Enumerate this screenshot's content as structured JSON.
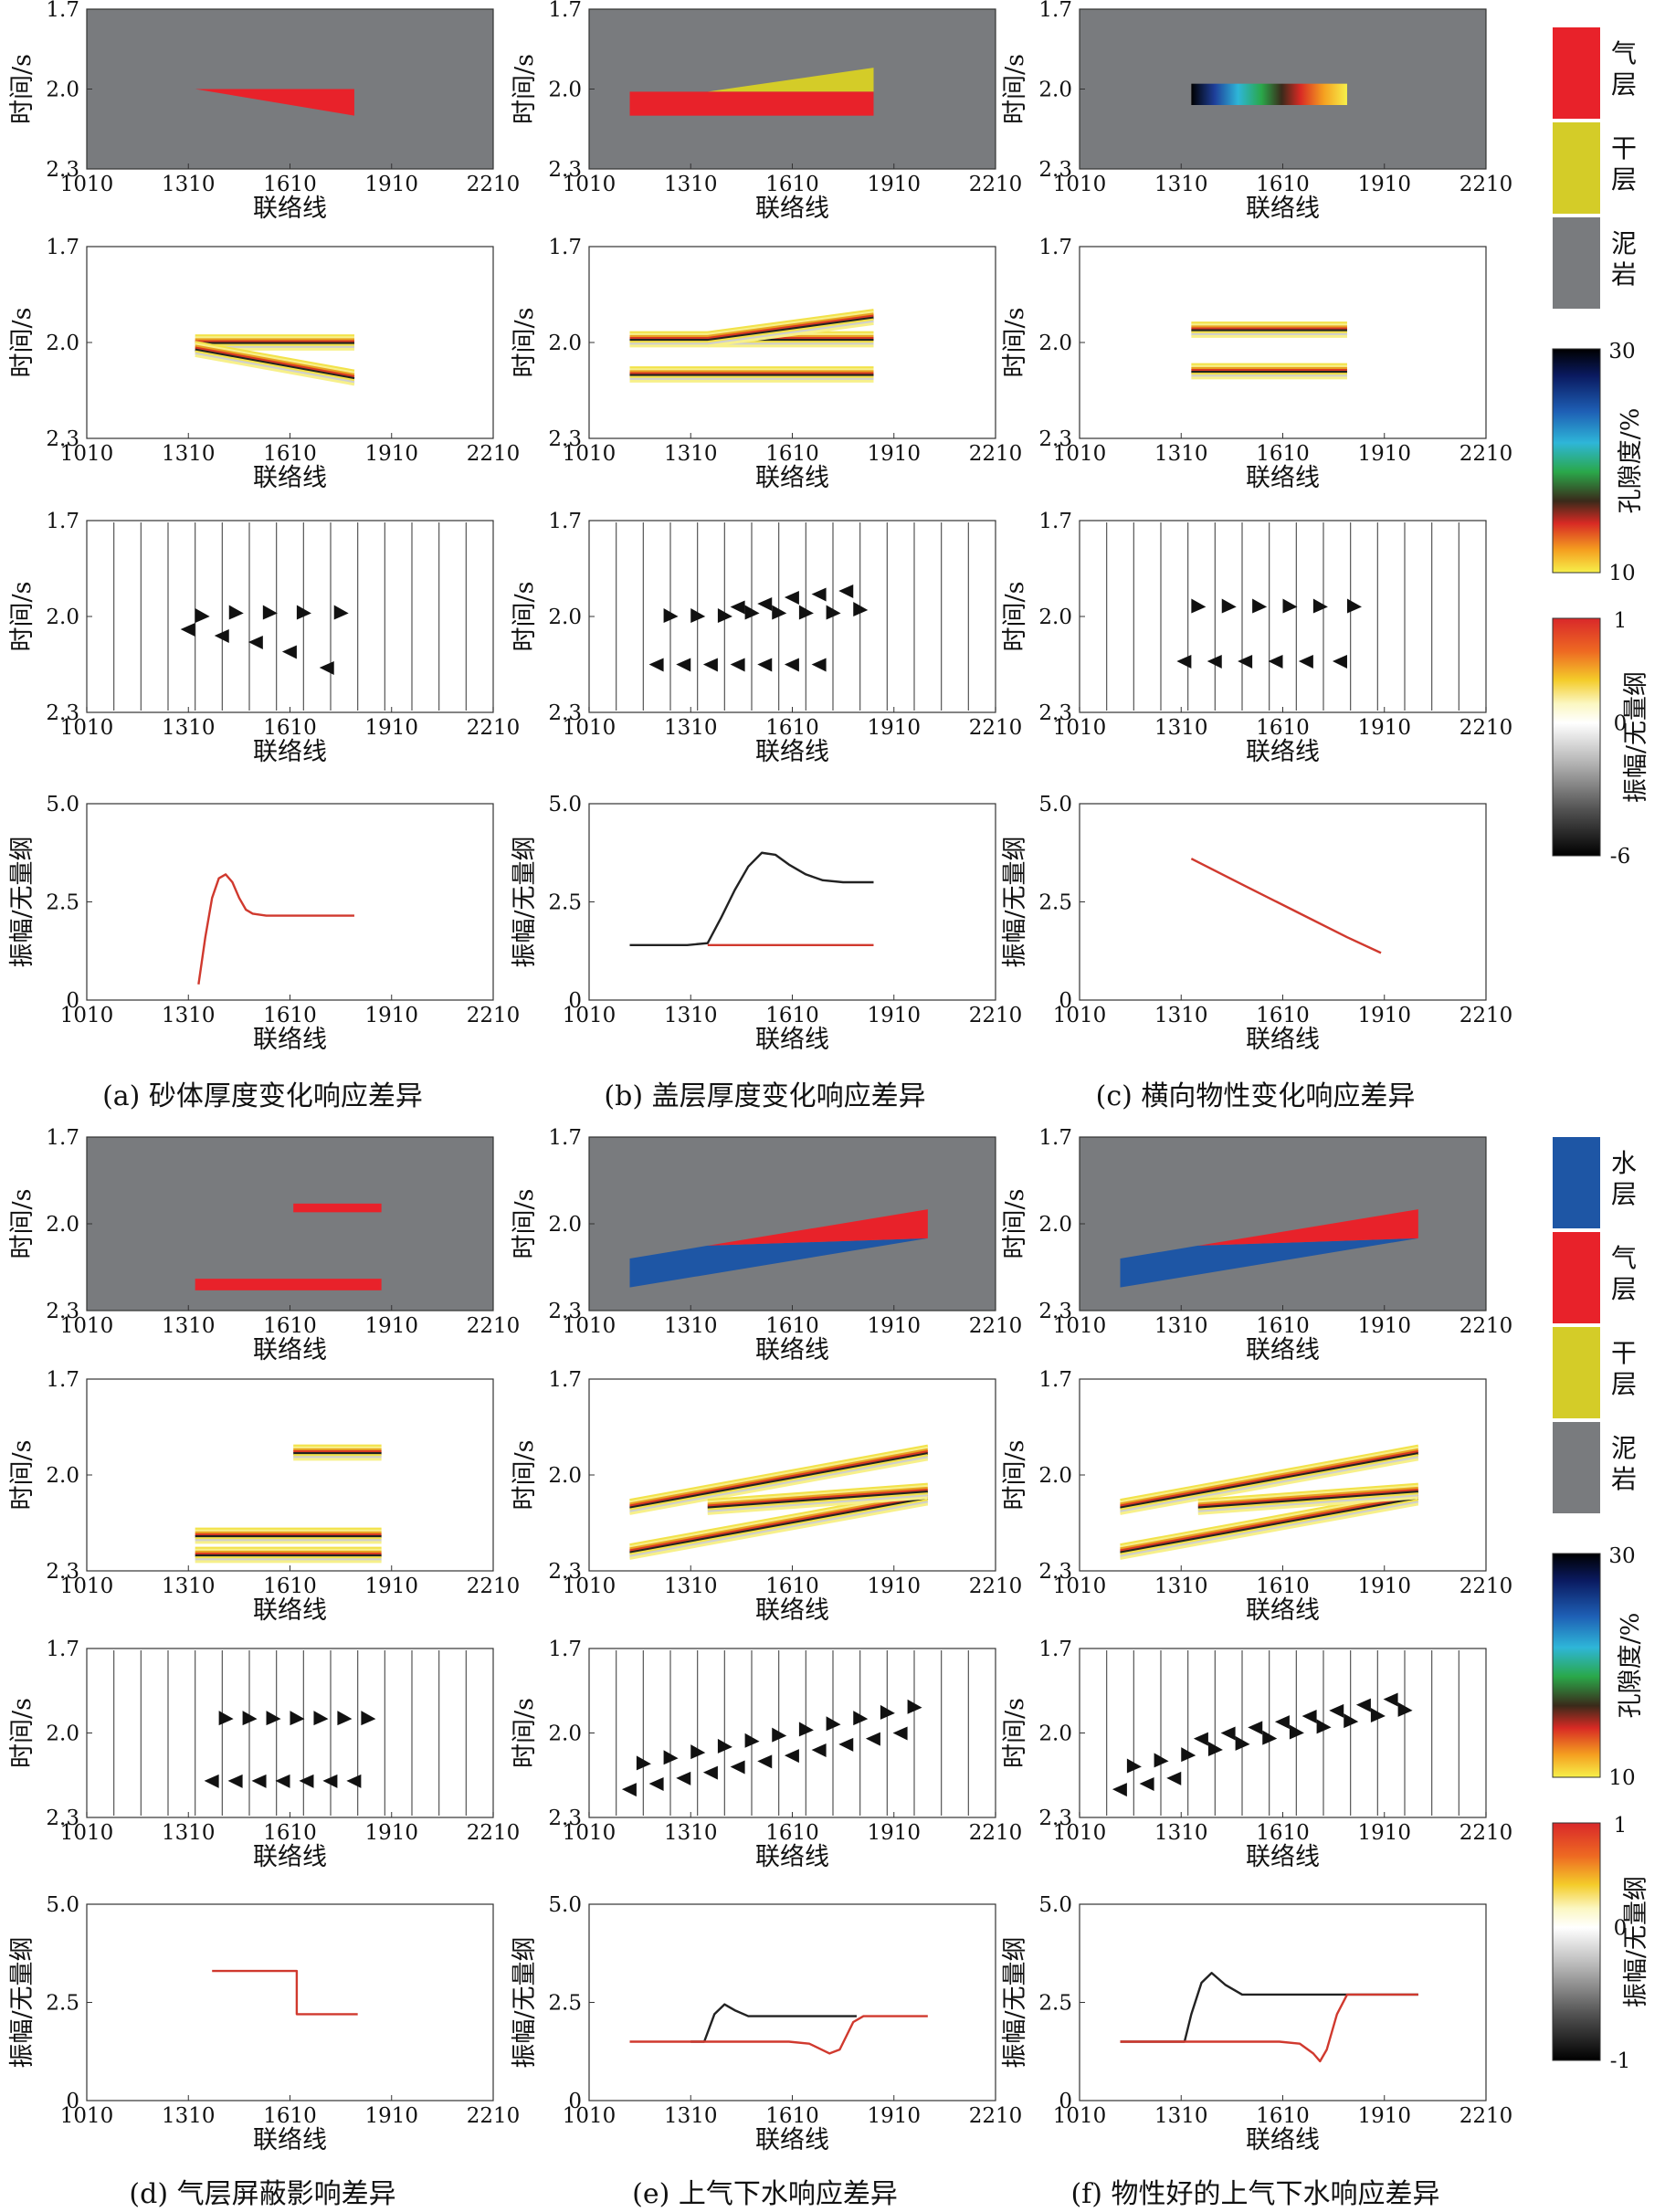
{
  "colors": {
    "gas": "#e8222a",
    "dry": "#d4cc28",
    "mud": "#797b7e",
    "water": "#1e56a5",
    "curve_red": "#d0392e",
    "curve_black": "#222222"
  },
  "legend_top": {
    "lithology": [
      {
        "label": "气\n层",
        "color": "#e8222a"
      },
      {
        "label": "干\n层",
        "color": "#d4cc28"
      },
      {
        "label": "泥\n岩",
        "color": "#797b7e"
      }
    ],
    "porosity": {
      "label": "孔隙度/%",
      "max": "30",
      "min": "10"
    },
    "amplitude": {
      "label": "振幅/无量纲",
      "max": "1",
      "mid": "0",
      "min": "-6"
    }
  },
  "legend_bottom": {
    "lithology": [
      {
        "label": "水\n层",
        "color": "#1e56a5"
      },
      {
        "label": "气\n层",
        "color": "#e8222a"
      },
      {
        "label": "干\n层",
        "color": "#d4cc28"
      },
      {
        "label": "泥\n岩",
        "color": "#797b7e"
      }
    ],
    "porosity": {
      "label": "孔隙度/%",
      "max": "30",
      "min": "10"
    },
    "amplitude": {
      "label": "振幅/无量纲",
      "max": "1",
      "mid": "0",
      "min": "-1"
    }
  },
  "chart_data": [
    {
      "panel": "a",
      "caption": "(a) 砂体厚度变化响应差异",
      "xlabel": "联络线",
      "ylabel_time": "时间/s",
      "ylabel_amp": "振幅/无量纲",
      "xticks": [
        "1010",
        "1310",
        "1610",
        "1910",
        "2210"
      ],
      "xlim": [
        1010,
        2210
      ],
      "yticks_time": [
        "1.7",
        "2.0",
        "2.3"
      ],
      "ylim_time": [
        1.7,
        2.3
      ],
      "yticks_amp": [
        "5.0",
        "2.5",
        "0"
      ],
      "ylim_amp": [
        0,
        5
      ],
      "model": {
        "type": "wedge",
        "body": "gas",
        "x": [
          1330,
          1800
        ],
        "top": 2.0,
        "base_start": 2.0,
        "base_end": 2.1
      },
      "traces": {
        "x": [
          1010,
          1090,
          1170,
          1250,
          1330,
          1410,
          1490,
          1570,
          1650,
          1730,
          1810,
          1890,
          1970,
          2050,
          2130,
          2210
        ],
        "events": [
          {
            "x": 1330,
            "pos": 2.0,
            "neg": [
              2.04
            ]
          },
          {
            "x": 1430,
            "pos": 1.99,
            "neg": [
              2.06
            ]
          },
          {
            "x": 1530,
            "pos": 1.99,
            "neg": [
              2.08
            ]
          },
          {
            "x": 1630,
            "pos": 1.99,
            "neg": [
              2.11
            ]
          },
          {
            "x": 1740,
            "pos": 1.99,
            "neg": [
              2.16
            ]
          }
        ]
      },
      "curves": [
        {
          "color": "red",
          "x": [
            1340,
            1360,
            1380,
            1400,
            1420,
            1440,
            1460,
            1480,
            1500,
            1540,
            1600,
            1700,
            1800
          ],
          "y": [
            0.4,
            1.6,
            2.6,
            3.1,
            3.2,
            3.0,
            2.6,
            2.3,
            2.2,
            2.15,
            2.15,
            2.15,
            2.15
          ]
        }
      ]
    },
    {
      "panel": "b",
      "caption": "(b) 盖层厚度变化响应差异",
      "xlabel": "联络线",
      "ylabel_time": "时间/s",
      "ylabel_amp": "振幅/无量纲",
      "xticks": [
        "1010",
        "1310",
        "1610",
        "1910",
        "2210"
      ],
      "xlim": [
        1010,
        2210
      ],
      "yticks_time": [
        "1.7",
        "2.0",
        "2.3"
      ],
      "ylim_time": [
        1.7,
        2.3
      ],
      "yticks_amp": [
        "5.0",
        "2.5",
        "0"
      ],
      "ylim_amp": [
        0,
        5
      ],
      "model": {
        "type": "cap",
        "body": "gas",
        "cap": "dry",
        "x": [
          1130,
          1850
        ],
        "gas_top": 2.01,
        "gas_base": 2.1,
        "cap_start_x": 1360,
        "cap_top_end": 1.92
      },
      "traces": {
        "x": [
          1010,
          1090,
          1170,
          1250,
          1330,
          1410,
          1490,
          1570,
          1650,
          1730,
          1810,
          1890,
          1970,
          2050,
          2130,
          2210
        ],
        "events": [
          {
            "x": 1230,
            "pos": 2.0,
            "neg": [
              2.15
            ]
          },
          {
            "x": 1310,
            "pos": 2.0,
            "neg": [
              2.15
            ]
          },
          {
            "x": 1390,
            "pos": 2.0,
            "neg": [
              2.15
            ]
          },
          {
            "x": 1470,
            "pos": 1.99,
            "neg": [
              1.97,
              2.15
            ]
          },
          {
            "x": 1550,
            "pos": 1.99,
            "neg": [
              1.96,
              2.15
            ]
          },
          {
            "x": 1630,
            "pos": 1.99,
            "neg": [
              1.94,
              2.15
            ]
          },
          {
            "x": 1710,
            "pos": 1.99,
            "neg": [
              1.93,
              2.15
            ]
          },
          {
            "x": 1790,
            "pos": 1.98,
            "neg": [
              1.92
            ]
          }
        ]
      },
      "curves": [
        {
          "color": "black",
          "x": [
            1130,
            1300,
            1360,
            1400,
            1440,
            1480,
            1520,
            1560,
            1600,
            1650,
            1700,
            1760,
            1800,
            1850
          ],
          "y": [
            1.4,
            1.4,
            1.45,
            2.1,
            2.8,
            3.4,
            3.75,
            3.7,
            3.45,
            3.2,
            3.05,
            3.0,
            3.0,
            3.0
          ]
        },
        {
          "color": "red",
          "x": [
            1360,
            1850
          ],
          "y": [
            1.4,
            1.4
          ]
        }
      ]
    },
    {
      "panel": "c",
      "caption": "(c) 横向物性变化响应差异",
      "xlabel": "联络线",
      "ylabel_time": "时间/s",
      "ylabel_amp": "振幅/无量纲",
      "xticks": [
        "1010",
        "1310",
        "1610",
        "1910",
        "2210"
      ],
      "xlim": [
        1010,
        2210
      ],
      "yticks_time": [
        "1.7",
        "2.0",
        "2.3"
      ],
      "ylim_time": [
        1.7,
        2.3
      ],
      "yticks_amp": [
        "5.0",
        "2.5",
        "0"
      ],
      "ylim_amp": [
        0,
        5
      ],
      "model": {
        "type": "porosity",
        "x": [
          1340,
          1800
        ],
        "top": 1.98,
        "base": 2.06,
        "porosity_start": 30,
        "porosity_end": 10
      },
      "traces": {
        "x": [
          1010,
          1090,
          1170,
          1250,
          1330,
          1410,
          1490,
          1570,
          1650,
          1730,
          1810,
          1890,
          1970,
          2050,
          2130,
          2210
        ],
        "events": [
          {
            "x": 1340,
            "pos": 1.97,
            "neg": [
              2.14
            ]
          },
          {
            "x": 1430,
            "pos": 1.97,
            "neg": [
              2.14
            ]
          },
          {
            "x": 1520,
            "pos": 1.97,
            "neg": [
              2.14
            ]
          },
          {
            "x": 1610,
            "pos": 1.97,
            "neg": [
              2.14
            ]
          },
          {
            "x": 1700,
            "pos": 1.97,
            "neg": [
              2.14
            ]
          },
          {
            "x": 1800,
            "pos": 1.97,
            "neg": [
              2.14
            ]
          }
        ]
      },
      "curves": [
        {
          "color": "red",
          "x": [
            1340,
            1500,
            1650,
            1800,
            1900
          ],
          "y": [
            3.6,
            2.9,
            2.25,
            1.6,
            1.2
          ]
        }
      ]
    },
    {
      "panel": "d",
      "caption": "(d) 气层屏蔽影响差异",
      "xlabel": "联络线",
      "ylabel_time": "时间/s",
      "ylabel_amp": "振幅/无量纲",
      "xticks": [
        "1010",
        "1310",
        "1610",
        "1910",
        "2210"
      ],
      "xlim": [
        1010,
        2210
      ],
      "yticks_time": [
        "1.7",
        "2.0",
        "2.3"
      ],
      "ylim_time": [
        1.7,
        2.3
      ],
      "yticks_amp": [
        "5.0",
        "2.5",
        "0"
      ],
      "ylim_amp": [
        0,
        5
      ],
      "model": {
        "type": "shield",
        "upper": {
          "x": [
            1620,
            1880
          ],
          "top": 1.93,
          "base": 1.96
        },
        "lower": {
          "x": [
            1330,
            1880
          ],
          "top": 2.19,
          "base": 2.23
        }
      },
      "traces": {
        "x": [
          1010,
          1090,
          1170,
          1250,
          1330,
          1410,
          1490,
          1570,
          1650,
          1730,
          1810,
          1890,
          1970,
          2050,
          2130,
          2210
        ],
        "events": [
          {
            "x": 1400,
            "pos": 1.95,
            "neg": [
              2.17
            ]
          },
          {
            "x": 1470,
            "pos": 1.95,
            "neg": [
              2.17
            ]
          },
          {
            "x": 1540,
            "pos": 1.95,
            "neg": [
              2.17
            ]
          },
          {
            "x": 1610,
            "pos": 1.95,
            "neg": [
              2.17
            ]
          },
          {
            "x": 1680,
            "pos": 1.95,
            "neg": [
              2.17
            ]
          },
          {
            "x": 1750,
            "pos": 1.95,
            "neg": [
              2.17
            ]
          },
          {
            "x": 1820,
            "pos": 1.95,
            "neg": [
              2.17
            ]
          }
        ]
      },
      "curves": [
        {
          "color": "red",
          "x": [
            1380,
            1630,
            1630,
            1810
          ],
          "y": [
            3.3,
            3.3,
            2.2,
            2.2
          ]
        }
      ]
    },
    {
      "panel": "e",
      "caption": "(e) 上气下水响应差异",
      "xlabel": "联络线",
      "ylabel_time": "时间/s",
      "ylabel_amp": "振幅/无量纲",
      "xticks": [
        "1010",
        "1310",
        "1610",
        "1910",
        "2210"
      ],
      "xlim": [
        1010,
        2210
      ],
      "yticks_time": [
        "1.7",
        "2.0",
        "2.3"
      ],
      "ylim_time": [
        1.7,
        2.3
      ],
      "yticks_amp": [
        "5.0",
        "2.5",
        "0"
      ],
      "ylim_amp": [
        0,
        5
      ],
      "model": {
        "type": "gaswater",
        "x": [
          1130,
          2010
        ],
        "top_left": 2.12,
        "top_right": 1.95,
        "base_left": 2.22,
        "base_right": 2.05,
        "contact_x": 1360
      },
      "traces": {
        "x": [
          1010,
          1090,
          1170,
          1250,
          1330,
          1410,
          1490,
          1570,
          1650,
          1730,
          1810,
          1890,
          1970,
          2050,
          2130,
          2210
        ],
        "events": [
          {
            "x": 1150,
            "pos": 2.11,
            "neg": [
              2.2
            ]
          },
          {
            "x": 1230,
            "pos": 2.09,
            "neg": [
              2.18
            ]
          },
          {
            "x": 1310,
            "pos": 2.07,
            "neg": [
              2.16
            ]
          },
          {
            "x": 1390,
            "pos": 2.05,
            "neg": [
              2.14
            ]
          },
          {
            "x": 1470,
            "pos": 2.03,
            "neg": [
              2.12
            ]
          },
          {
            "x": 1550,
            "pos": 2.01,
            "neg": [
              2.1
            ]
          },
          {
            "x": 1630,
            "pos": 1.99,
            "neg": [
              2.08
            ]
          },
          {
            "x": 1710,
            "pos": 1.97,
            "neg": [
              2.06
            ]
          },
          {
            "x": 1790,
            "pos": 1.95,
            "neg": [
              2.04
            ]
          },
          {
            "x": 1870,
            "pos": 1.93,
            "neg": [
              2.02
            ]
          },
          {
            "x": 1950,
            "pos": 1.91,
            "neg": [
              2.0
            ]
          }
        ]
      },
      "curves": [
        {
          "color": "black",
          "x": [
            1310,
            1350,
            1380,
            1410,
            1440,
            1480,
            1600,
            1800
          ],
          "y": [
            1.5,
            1.5,
            2.2,
            2.45,
            2.3,
            2.15,
            2.15,
            2.15
          ]
        },
        {
          "color": "red",
          "x": [
            1130,
            1600,
            1660,
            1720,
            1750,
            1790,
            1820,
            2010
          ],
          "y": [
            1.5,
            1.5,
            1.45,
            1.2,
            1.3,
            2.0,
            2.15,
            2.15
          ]
        }
      ]
    },
    {
      "panel": "f",
      "caption": "(f) 物性好的上气下水响应差异",
      "xlabel": "联络线",
      "ylabel_time": "时间/s",
      "ylabel_amp": "振幅/无量纲",
      "xticks": [
        "1010",
        "1310",
        "1610",
        "1910",
        "2210"
      ],
      "xlim": [
        1010,
        2210
      ],
      "yticks_time": [
        "1.7",
        "2.0",
        "2.3"
      ],
      "ylim_time": [
        1.7,
        2.3
      ],
      "yticks_amp": [
        "5.0",
        "2.5",
        "0"
      ],
      "ylim_amp": [
        0,
        5
      ],
      "model": {
        "type": "gaswater",
        "x": [
          1130,
          2010
        ],
        "top_left": 2.12,
        "top_right": 1.95,
        "base_left": 2.22,
        "base_right": 2.05,
        "contact_x": 1360
      },
      "traces": {
        "x": [
          1010,
          1090,
          1170,
          1250,
          1330,
          1410,
          1490,
          1570,
          1650,
          1730,
          1810,
          1890,
          1970,
          2050,
          2130,
          2210
        ],
        "events": [
          {
            "x": 1150,
            "pos": 2.12,
            "neg": [
              2.2
            ]
          },
          {
            "x": 1230,
            "pos": 2.1,
            "neg": [
              2.18
            ]
          },
          {
            "x": 1310,
            "pos": 2.08,
            "neg": [
              2.16
            ]
          },
          {
            "x": 1390,
            "pos": 2.06,
            "neg": [
              2.02
            ]
          },
          {
            "x": 1470,
            "pos": 2.04,
            "neg": [
              2.0
            ]
          },
          {
            "x": 1550,
            "pos": 2.02,
            "neg": [
              1.98
            ]
          },
          {
            "x": 1630,
            "pos": 2.0,
            "neg": [
              1.96
            ]
          },
          {
            "x": 1710,
            "pos": 1.98,
            "neg": [
              1.94
            ]
          },
          {
            "x": 1790,
            "pos": 1.96,
            "neg": [
              1.92
            ]
          },
          {
            "x": 1870,
            "pos": 1.94,
            "neg": [
              1.9
            ]
          },
          {
            "x": 1950,
            "pos": 1.92,
            "neg": [
              1.88
            ]
          }
        ]
      },
      "curves": [
        {
          "color": "black",
          "x": [
            1130,
            1320,
            1340,
            1370,
            1400,
            1440,
            1490,
            1600,
            2010
          ],
          "y": [
            1.5,
            1.5,
            2.2,
            3.0,
            3.25,
            2.95,
            2.7,
            2.7,
            2.7
          ]
        },
        {
          "color": "red",
          "x": [
            1130,
            1600,
            1660,
            1700,
            1720,
            1740,
            1770,
            1800,
            2010
          ],
          "y": [
            1.5,
            1.5,
            1.45,
            1.2,
            1.0,
            1.3,
            2.2,
            2.7,
            2.7
          ]
        }
      ]
    }
  ]
}
